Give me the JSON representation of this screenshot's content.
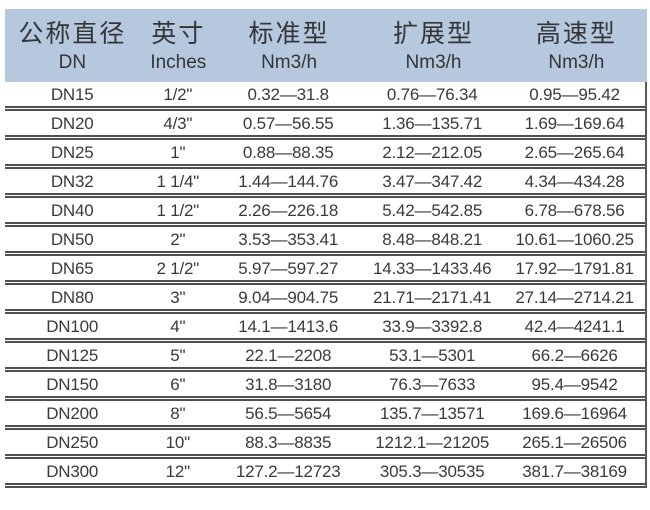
{
  "table": {
    "headers": [
      {
        "cn": "公称直径",
        "en": "DN"
      },
      {
        "cn": "英寸",
        "en": "Inches"
      },
      {
        "cn": "标准型",
        "en": "Nm3/h"
      },
      {
        "cn": "扩展型",
        "en": "Nm3/h"
      },
      {
        "cn": "高速型",
        "en": "Nm3/h"
      }
    ],
    "rows": [
      [
        "DN15",
        "1/2\"",
        "0.32—31.8",
        "0.76—76.34",
        "0.95—95.42"
      ],
      [
        "DN20",
        "4/3\"",
        "0.57—56.55",
        "1.36—135.71",
        "1.69—169.64"
      ],
      [
        "DN25",
        "1\"",
        "0.88—88.35",
        "2.12—212.05",
        "2.65—265.64"
      ],
      [
        "DN32",
        "1 1/4\"",
        "1.44—144.76",
        "3.47—347.42",
        "4.34—434.28"
      ],
      [
        "DN40",
        "1 1/2\"",
        "2.26—226.18",
        "5.42—542.85",
        "6.78—678.56"
      ],
      [
        "DN50",
        "2\"",
        "3.53—353.41",
        "8.48—848.21",
        "10.61—1060.25"
      ],
      [
        "DN65",
        "2 1/2\"",
        "5.97—597.27",
        "14.33—1433.46",
        "17.92—1791.81"
      ],
      [
        "DN80",
        "3\"",
        "9.04—904.75",
        "21.71—2171.41",
        "27.14—2714.21"
      ],
      [
        "DN100",
        "4\"",
        "14.1—1413.6",
        "33.9—3392.8",
        "42.4—4241.1"
      ],
      [
        "DN125",
        "5\"",
        "22.1—2208",
        "53.1—5301",
        "66.2—6626"
      ],
      [
        "DN150",
        "6\"",
        "31.8—3180",
        "76.3—7633",
        "95.4—9542"
      ],
      [
        "DN200",
        "8\"",
        "56.5—5654",
        "135.7—13571",
        "169.6—16964"
      ],
      [
        "DN250",
        "10\"",
        "88.3—8835",
        "1212.1—21205",
        "265.1—26506"
      ],
      [
        "DN300",
        "12\"",
        "127.2—12723",
        "305.3—30535",
        "381.7—38169"
      ]
    ]
  },
  "colors": {
    "header_bg": "#b5c8de",
    "body_text": "#3a3a3a",
    "separator_line": "#4f4f4f"
  }
}
